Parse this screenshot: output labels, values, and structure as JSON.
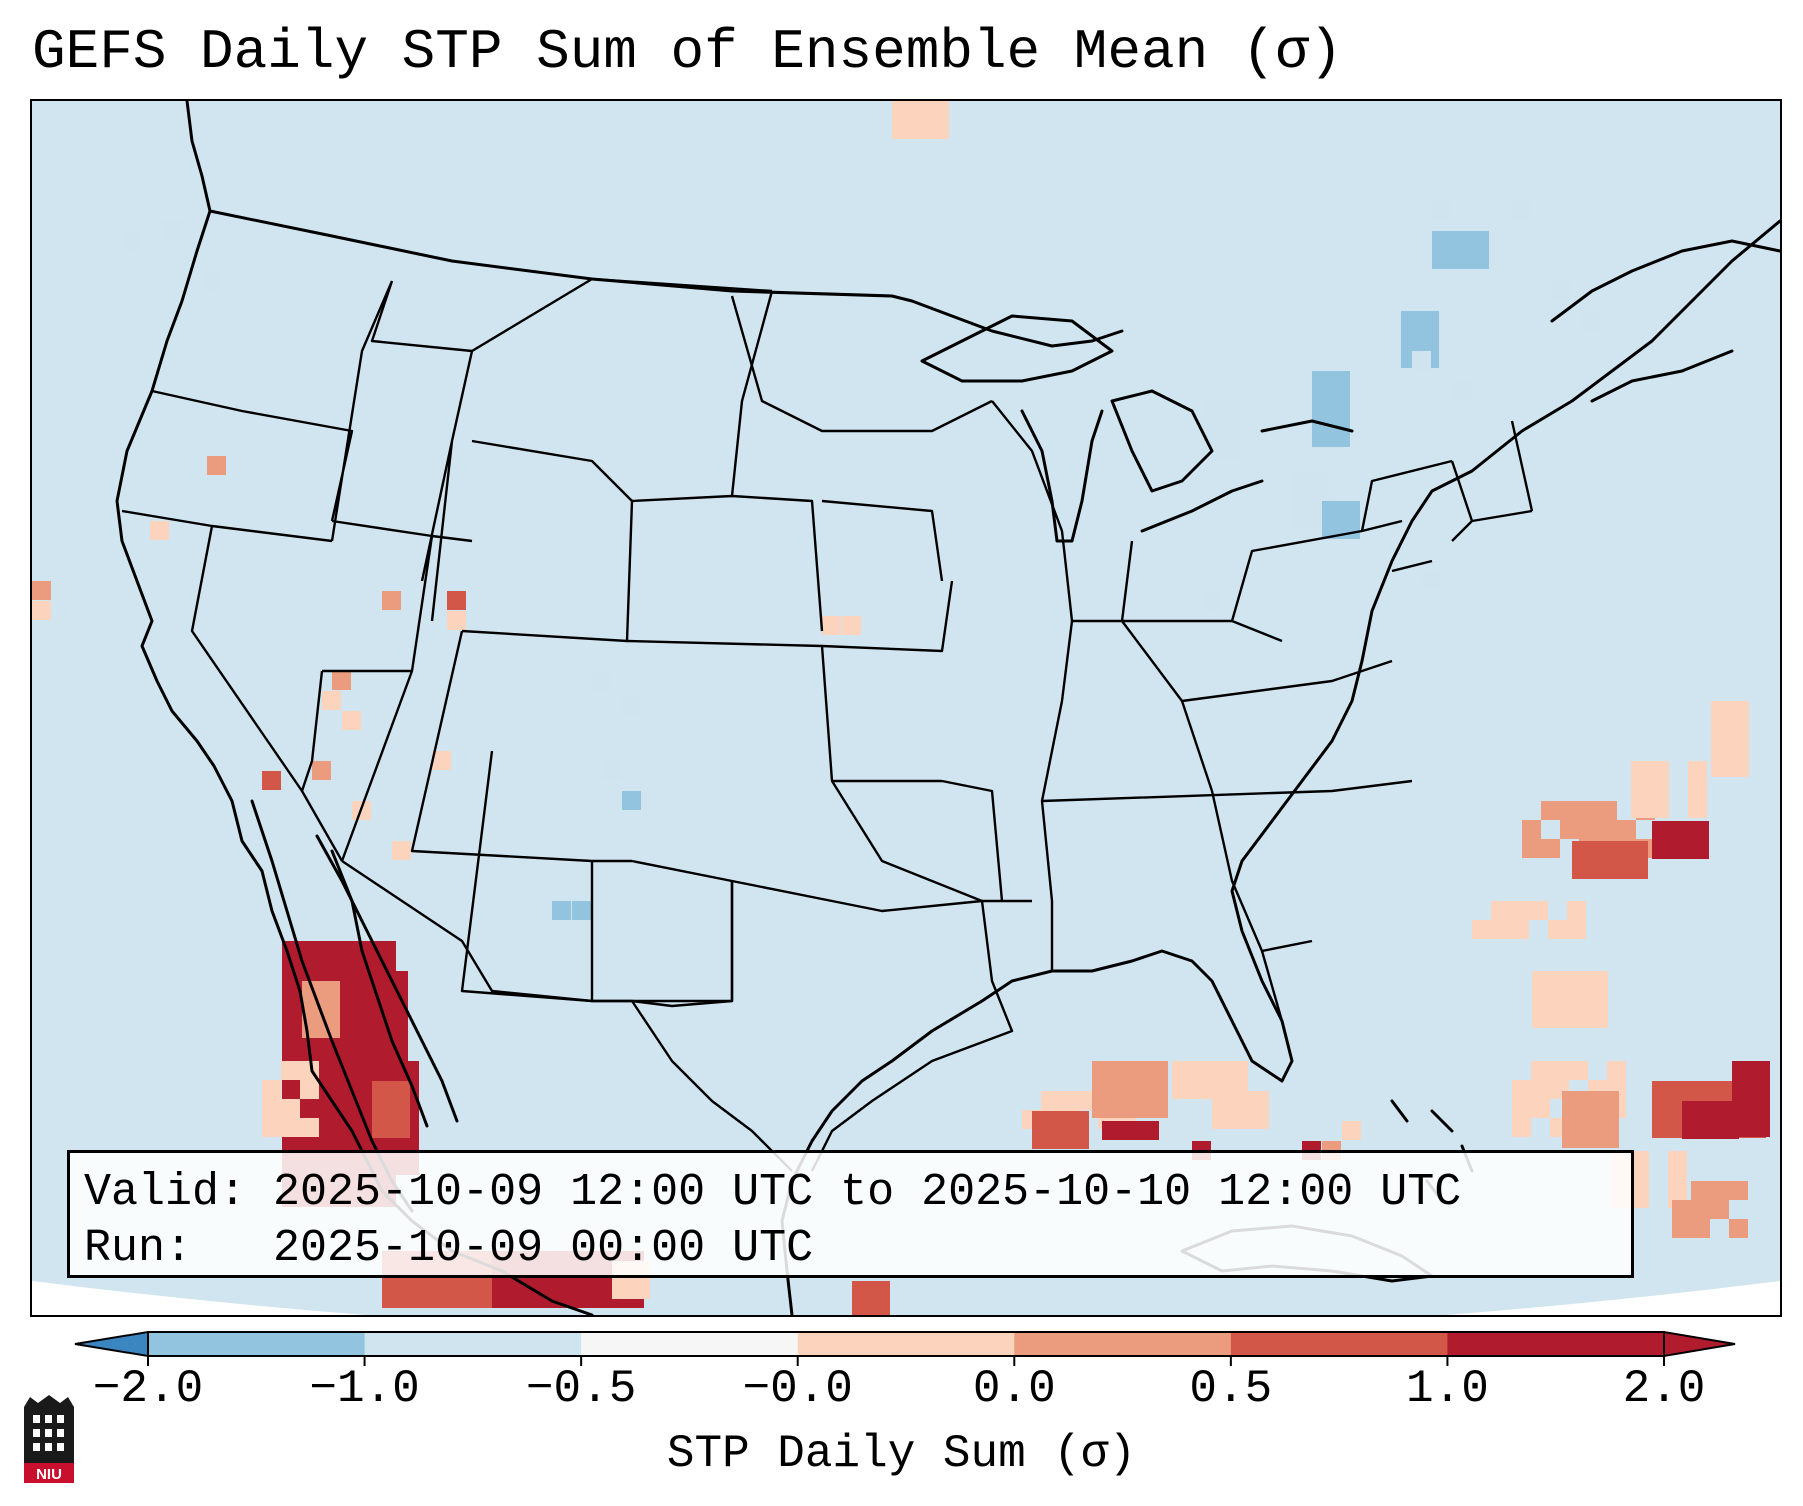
{
  "title": "GEFS Daily STP Sum of Ensemble Mean (σ)",
  "info": {
    "valid_line": "Valid: 2025-10-09 12:00 UTC to 2025-10-10 12:00 UTC",
    "run_line": "Run:   2025-10-09 00:00 UTC"
  },
  "colorbar": {
    "label": "STP Daily Sum (σ)",
    "tick_labels": [
      "−2.0",
      "−1.0",
      "−0.5",
      "−0.0",
      "0.0",
      "0.5",
      "1.0",
      "2.0"
    ],
    "colors": [
      "#3b86c0",
      "#93c4df",
      "#d0e4ef",
      "#f6f6f6",
      "#fcd4be",
      "#ec9c7e",
      "#d25749",
      "#b01c2e"
    ],
    "extend": "both"
  },
  "map": {
    "projection": "Lambert Conformal, CONUS",
    "background_color": "#d1e5f0",
    "outside_color": "#ffffff",
    "boundary_color": "#000000",
    "state_lines": true
  },
  "logo": {
    "text": "NIU",
    "icon": "niu-logo-icon"
  }
}
